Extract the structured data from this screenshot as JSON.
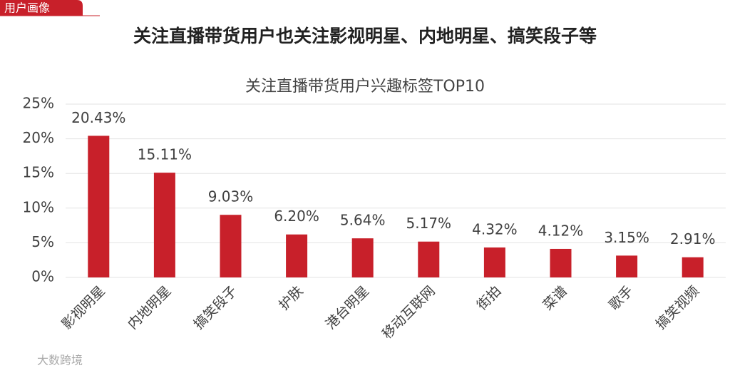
{
  "header": {
    "tag": "用户画像",
    "headline": "关注直播带货用户也关注影视明星、内地明星、搞笑段子等"
  },
  "watermark": "大数跨境",
  "chart_data": {
    "type": "bar",
    "title": "关注直播带货用户兴趣标签TOP10",
    "categories": [
      "影视明星",
      "内地明星",
      "搞笑段子",
      "护肤",
      "港台明星",
      "移动互联网",
      "街拍",
      "菜谱",
      "歌手",
      "搞笑视频"
    ],
    "values": [
      20.43,
      15.11,
      9.03,
      6.2,
      5.64,
      5.17,
      4.32,
      4.12,
      3.15,
      2.91
    ],
    "value_labels": [
      "20.43%",
      "15.11%",
      "9.03%",
      "6.20%",
      "5.64%",
      "5.17%",
      "4.32%",
      "4.12%",
      "3.15%",
      "2.91%"
    ],
    "color": "#c8202a",
    "ylim": [
      0,
      25
    ],
    "yticks": [
      {
        "value": 0,
        "label": "0%"
      },
      {
        "value": 5,
        "label": "5%"
      },
      {
        "value": 10,
        "label": "10%"
      },
      {
        "value": 15,
        "label": "15%"
      },
      {
        "value": 20,
        "label": "20%"
      },
      {
        "value": 25,
        "label": "25%"
      }
    ],
    "grid": true
  }
}
